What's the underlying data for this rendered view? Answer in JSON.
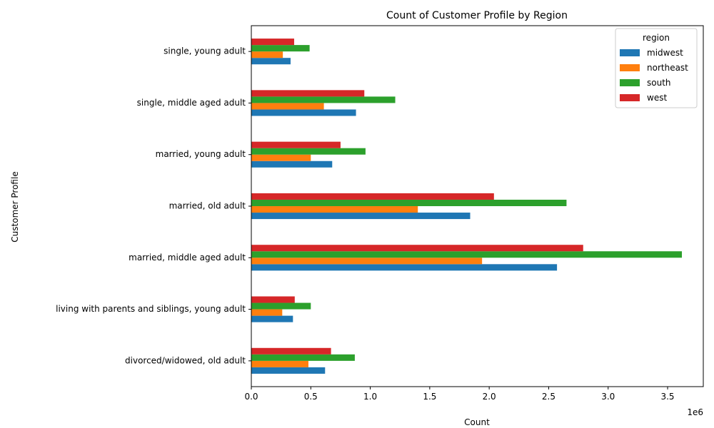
{
  "chart_data": {
    "type": "bar",
    "orientation": "horizontal",
    "title": "Count of Customer Profile by Region",
    "xlabel": "Count",
    "ylabel": "Customer Profile",
    "x_scale_label": "1e6",
    "xlim": [
      0,
      3800000
    ],
    "x_ticks": [
      0,
      500000,
      1000000,
      1500000,
      2000000,
      2500000,
      3000000,
      3500000
    ],
    "x_tick_labels": [
      "0.0",
      "0.5",
      "1.0",
      "1.5",
      "2.0",
      "2.5",
      "3.0",
      "3.5"
    ],
    "grid": false,
    "legend_title": "region",
    "legend_position": "top-right",
    "categories": [
      "divorced/widowed, old adult",
      "living with parents and siblings, young adult",
      "married, middle aged adult",
      "married, old adult",
      "married, young adult",
      "single, middle aged adult",
      "single, young adult"
    ],
    "series": [
      {
        "name": "midwest",
        "color": "#1f77b4",
        "values": [
          620000,
          350000,
          2570000,
          1840000,
          680000,
          880000,
          330000
        ]
      },
      {
        "name": "northeast",
        "color": "#ff7f0e",
        "values": [
          480000,
          260000,
          1940000,
          1400000,
          500000,
          610000,
          265000
        ]
      },
      {
        "name": "south",
        "color": "#2ca02c",
        "values": [
          870000,
          500000,
          3620000,
          2650000,
          960000,
          1210000,
          490000
        ]
      },
      {
        "name": "west",
        "color": "#d62728",
        "values": [
          670000,
          365000,
          2790000,
          2040000,
          750000,
          950000,
          360000
        ]
      }
    ]
  }
}
